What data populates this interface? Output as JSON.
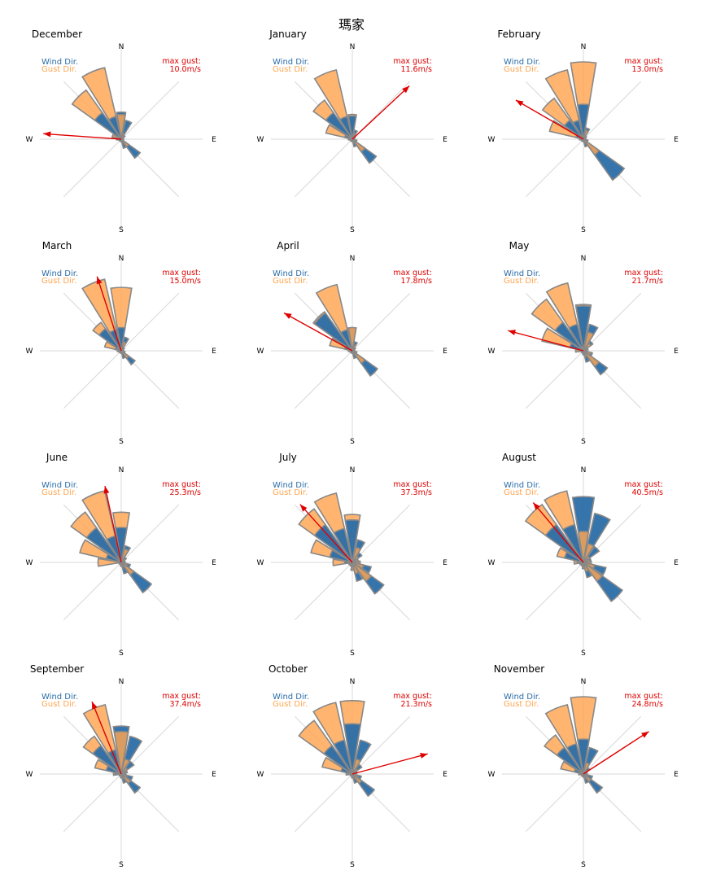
{
  "chart_data": {
    "type": "polar-bar",
    "title": "瑪家",
    "legend": {
      "wind_label": "Wind Dir.",
      "gust_label": "Gust Dir.",
      "position": "top-left"
    },
    "gust_label_prefix": "max gust:",
    "compass_labels": [
      "N",
      "E",
      "S",
      "W"
    ],
    "directions": [
      "N",
      "NNE",
      "NE",
      "ENE",
      "E",
      "ESE",
      "SE",
      "SSE",
      "S",
      "SSW",
      "SW",
      "WSW",
      "W",
      "WNW",
      "NW",
      "NNW"
    ],
    "colors": {
      "wind": "#2b6ea8",
      "gust": "#ffa54f",
      "outline": "#888888",
      "arrow": "#e00000",
      "axis": "#d8d8d8"
    },
    "panels": [
      {
        "month": "December",
        "max_gust": "10.0m/s",
        "gust_dir_deg": 274,
        "wind": [
          0.35,
          0.25,
          0.06,
          0.03,
          0.02,
          0.03,
          0.3,
          0.12,
          0.03,
          0.03,
          0.03,
          0.03,
          0.05,
          0.12,
          0.42,
          0.3
        ],
        "gust": [
          0.32,
          0.08,
          0.04,
          0.03,
          0.02,
          0.03,
          0.12,
          0.05,
          0.03,
          0.03,
          0.03,
          0.03,
          0.06,
          0.12,
          0.78,
          0.95
        ]
      },
      {
        "month": "January",
        "max_gust": "11.6m/s",
        "gust_dir_deg": 47,
        "wind": [
          0.3,
          0.12,
          0.05,
          0.03,
          0.02,
          0.06,
          0.38,
          0.1,
          0.03,
          0.03,
          0.03,
          0.03,
          0.05,
          0.1,
          0.42,
          0.3
        ],
        "gust": [
          0.32,
          0.08,
          0.04,
          0.03,
          0.02,
          0.04,
          0.2,
          0.05,
          0.03,
          0.03,
          0.03,
          0.03,
          0.05,
          0.35,
          0.62,
          0.92
        ]
      },
      {
        "month": "February",
        "max_gust": "13.0m/s",
        "gust_dir_deg": 300,
        "wind": [
          0.45,
          0.15,
          0.05,
          0.03,
          0.03,
          0.06,
          0.65,
          0.1,
          0.03,
          0.03,
          0.03,
          0.03,
          0.05,
          0.1,
          0.3,
          0.25
        ],
        "gust": [
          1.0,
          0.12,
          0.04,
          0.03,
          0.03,
          0.05,
          0.25,
          0.05,
          0.03,
          0.03,
          0.03,
          0.03,
          0.05,
          0.45,
          0.65,
          0.92
        ]
      },
      {
        "month": "March",
        "max_gust": "15.0m/s",
        "gust_dir_deg": 342,
        "wind": [
          0.3,
          0.18,
          0.05,
          0.03,
          0.03,
          0.05,
          0.22,
          0.1,
          0.03,
          0.03,
          0.03,
          0.03,
          0.05,
          0.08,
          0.35,
          0.28
        ],
        "gust": [
          0.82,
          0.12,
          0.04,
          0.03,
          0.03,
          0.04,
          0.12,
          0.05,
          0.03,
          0.03,
          0.03,
          0.03,
          0.05,
          0.22,
          0.45,
          0.95
        ]
      },
      {
        "month": "April",
        "max_gust": "17.8m/s",
        "gust_dir_deg": 299,
        "wind": [
          0.3,
          0.12,
          0.05,
          0.03,
          0.03,
          0.06,
          0.4,
          0.1,
          0.03,
          0.03,
          0.03,
          0.03,
          0.05,
          0.1,
          0.6,
          0.28
        ],
        "gust": [
          0.3,
          0.08,
          0.04,
          0.03,
          0.03,
          0.04,
          0.2,
          0.05,
          0.03,
          0.03,
          0.03,
          0.03,
          0.05,
          0.3,
          0.62,
          0.88
        ]
      },
      {
        "month": "May",
        "max_gust": "21.7m/s",
        "gust_dir_deg": 285,
        "wind": [
          0.58,
          0.35,
          0.15,
          0.06,
          0.05,
          0.12,
          0.38,
          0.15,
          0.05,
          0.03,
          0.03,
          0.03,
          0.05,
          0.18,
          0.45,
          0.35
        ],
        "gust": [
          0.6,
          0.25,
          0.12,
          0.06,
          0.04,
          0.1,
          0.25,
          0.08,
          0.04,
          0.03,
          0.03,
          0.03,
          0.1,
          0.55,
          0.82,
          0.9
        ]
      },
      {
        "month": "June",
        "max_gust": "25.3m/s",
        "gust_dir_deg": 348,
        "wind": [
          0.45,
          0.22,
          0.08,
          0.05,
          0.05,
          0.12,
          0.48,
          0.15,
          0.05,
          0.03,
          0.03,
          0.03,
          0.05,
          0.2,
          0.55,
          0.35
        ],
        "gust": [
          0.65,
          0.18,
          0.06,
          0.04,
          0.04,
          0.08,
          0.2,
          0.06,
          0.04,
          0.03,
          0.03,
          0.03,
          0.3,
          0.55,
          0.8,
          0.95
        ]
      },
      {
        "month": "July",
        "max_gust": "37.3m/s",
        "gust_dir_deg": 318,
        "wind": [
          0.55,
          0.3,
          0.15,
          0.08,
          0.1,
          0.25,
          0.5,
          0.25,
          0.1,
          0.05,
          0.03,
          0.05,
          0.1,
          0.3,
          0.6,
          0.45
        ],
        "gust": [
          0.62,
          0.2,
          0.1,
          0.08,
          0.1,
          0.15,
          0.3,
          0.15,
          0.1,
          0.05,
          0.03,
          0.05,
          0.25,
          0.55,
          0.85,
          0.92
        ]
      },
      {
        "month": "August",
        "max_gust": "40.5m/s",
        "gust_dir_deg": 320,
        "wind": [
          0.85,
          0.65,
          0.25,
          0.1,
          0.1,
          0.3,
          0.62,
          0.2,
          0.08,
          0.05,
          0.03,
          0.05,
          0.08,
          0.25,
          0.6,
          0.5
        ],
        "gust": [
          0.4,
          0.25,
          0.1,
          0.08,
          0.1,
          0.15,
          0.3,
          0.12,
          0.08,
          0.05,
          0.03,
          0.05,
          0.12,
          0.35,
          0.92,
          0.95
        ]
      },
      {
        "month": "September",
        "max_gust": "37.4m/s",
        "gust_dir_deg": 338,
        "wind": [
          0.62,
          0.5,
          0.2,
          0.08,
          0.06,
          0.15,
          0.3,
          0.12,
          0.05,
          0.03,
          0.03,
          0.03,
          0.08,
          0.2,
          0.45,
          0.32
        ],
        "gust": [
          0.55,
          0.2,
          0.1,
          0.06,
          0.05,
          0.08,
          0.15,
          0.06,
          0.04,
          0.03,
          0.03,
          0.03,
          0.1,
          0.35,
          0.6,
          0.92
        ]
      },
      {
        "month": "October",
        "max_gust": "21.3m/s",
        "gust_dir_deg": 75,
        "wind": [
          0.65,
          0.45,
          0.15,
          0.06,
          0.05,
          0.12,
          0.35,
          0.12,
          0.05,
          0.03,
          0.03,
          0.03,
          0.05,
          0.15,
          0.45,
          0.45
        ],
        "gust": [
          0.95,
          0.2,
          0.08,
          0.05,
          0.05,
          0.08,
          0.15,
          0.06,
          0.04,
          0.03,
          0.03,
          0.03,
          0.08,
          0.4,
          0.85,
          0.95
        ]
      },
      {
        "month": "November",
        "max_gust": "24.8m/s",
        "gust_dir_deg": 57,
        "wind": [
          0.45,
          0.35,
          0.1,
          0.05,
          0.05,
          0.12,
          0.3,
          0.12,
          0.04,
          0.03,
          0.03,
          0.03,
          0.05,
          0.12,
          0.42,
          0.4
        ],
        "gust": [
          1.0,
          0.15,
          0.05,
          0.04,
          0.04,
          0.06,
          0.12,
          0.06,
          0.04,
          0.03,
          0.03,
          0.03,
          0.06,
          0.3,
          0.62,
          0.92
        ]
      }
    ]
  }
}
